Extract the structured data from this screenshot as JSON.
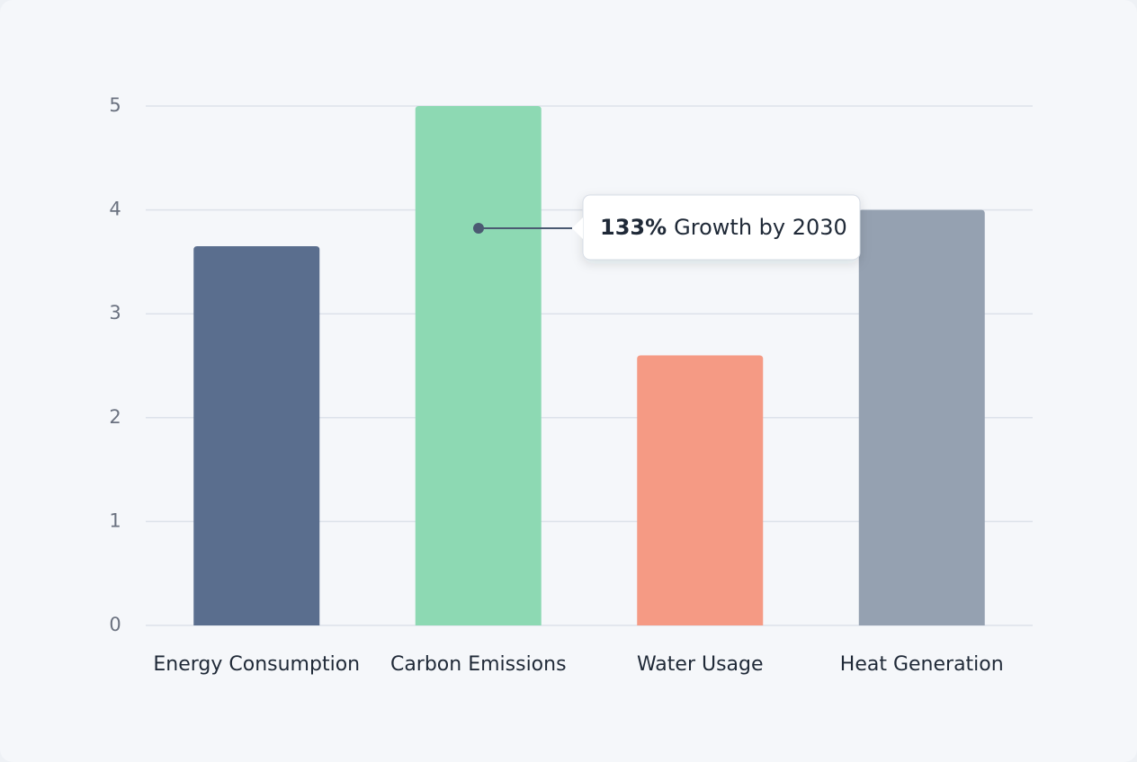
{
  "chart_data": {
    "type": "bar",
    "categories": [
      "Energy Consumption",
      "Carbon Emissions",
      "Water Usage",
      "Heat Generation"
    ],
    "values": [
      3.65,
      5,
      2.6,
      4
    ],
    "colors": [
      "#5a6e8e",
      "#8dd9b3",
      "#f59a84",
      "#95a1b1"
    ],
    "ylim": [
      0,
      5
    ],
    "yticks": [
      0,
      1,
      2,
      3,
      4,
      5
    ],
    "grid": true,
    "annotation": {
      "emphasis": "133%",
      "text": "Growth by 2030"
    }
  }
}
